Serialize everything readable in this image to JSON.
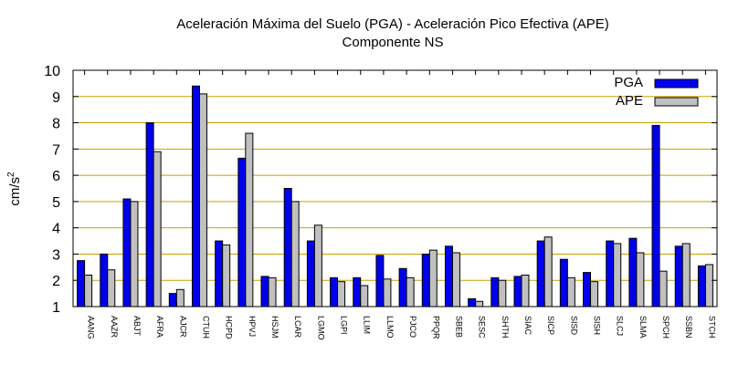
{
  "chart_data": {
    "type": "bar",
    "title_line1": "Aceleración Máxima del Suelo (PGA) -  Aceleración Pico Efectiva (APE)",
    "title_line2": "Componente NS",
    "ylabel": "cm/s",
    "ylabel_superscript": "2",
    "ylim": [
      1,
      10
    ],
    "yticks": [
      1,
      2,
      3,
      4,
      5,
      6,
      7,
      8,
      9,
      10
    ],
    "grid": "horizontal",
    "legend_position": "top-right",
    "categories": [
      "AANG",
      "AAZR",
      "ABJT",
      "AFRA",
      "AJCR",
      "CTUH",
      "HCPD",
      "HPVJ",
      "HSJM",
      "LCAR",
      "LGMO",
      "LGPI",
      "LLIM",
      "LLMO",
      "PJCO",
      "PPQR",
      "SBEB",
      "SESC",
      "SHTH",
      "SIAC",
      "SICP",
      "SISD",
      "SISH",
      "SLCJ",
      "SLMA",
      "SPCH",
      "SSBN",
      "STCH"
    ],
    "series": [
      {
        "name": "PGA",
        "color": "#0000ee",
        "values": [
          2.75,
          3.0,
          5.1,
          8.0,
          1.5,
          9.4,
          3.5,
          6.65,
          2.15,
          5.5,
          3.5,
          2.1,
          2.1,
          2.95,
          2.45,
          3.0,
          3.3,
          1.3,
          2.1,
          2.15,
          3.5,
          2.8,
          2.3,
          3.5,
          3.6,
          7.9,
          3.3,
          2.55
        ]
      },
      {
        "name": "APE",
        "color": "#c0c0c0",
        "values": [
          2.2,
          2.4,
          5.0,
          6.9,
          1.65,
          9.1,
          3.35,
          7.6,
          2.1,
          5.0,
          4.1,
          1.95,
          1.8,
          2.05,
          2.1,
          3.15,
          3.05,
          1.2,
          2.0,
          2.2,
          3.65,
          2.1,
          1.95,
          3.4,
          3.05,
          2.35,
          3.4,
          2.6
        ]
      }
    ]
  }
}
